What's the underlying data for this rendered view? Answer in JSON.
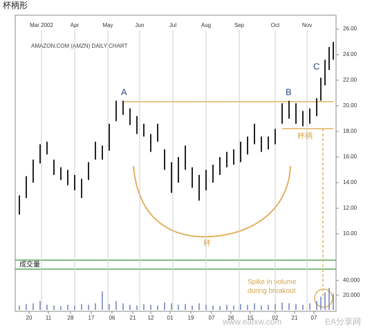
{
  "title": "杯柄形",
  "chart_data": {
    "type": "hilo",
    "subtitle": "AMAZON.COM (AMZN) DAILY CHART",
    "color": "#222222",
    "volume_color": "#6a7fb8",
    "x": [
      3,
      8,
      13,
      18,
      23,
      28,
      33,
      38,
      43,
      48,
      53,
      58,
      63,
      68,
      73,
      78,
      83,
      88,
      93,
      98,
      103,
      108,
      113,
      118,
      123,
      128,
      133,
      138,
      143,
      148,
      153,
      158,
      163,
      168,
      173,
      178,
      183,
      188,
      193,
      198,
      203,
      208,
      213,
      218,
      221,
      224,
      227,
      230
    ],
    "low": [
      11.5,
      12.8,
      14.0,
      15.5,
      16.2,
      14.6,
      14.2,
      13.8,
      13.4,
      12.8,
      14.2,
      15.8,
      15.8,
      16.5,
      18.8,
      19.3,
      18.5,
      17.8,
      17.6,
      16.4,
      17.2,
      15.0,
      13.2,
      14.0,
      15.0,
      13.6,
      12.6,
      13.4,
      14.0,
      14.6,
      15.2,
      15.4,
      15.6,
      16.2,
      17.0,
      16.4,
      16.6,
      17.0,
      18.6,
      19.0,
      18.6,
      18.4,
      18.6,
      19.2,
      20.4,
      21.6,
      22.8,
      23.6
    ],
    "high": [
      13.0,
      14.5,
      15.8,
      17.0,
      17.2,
      15.8,
      15.2,
      15.0,
      14.6,
      14.3,
      15.6,
      17.2,
      16.9,
      18.6,
      20.4,
      20.4,
      19.8,
      19.2,
      18.6,
      17.8,
      18.6,
      16.6,
      15.6,
      16.0,
      16.9,
      15.2,
      14.6,
      15.0,
      15.4,
      16.0,
      16.4,
      16.6,
      17.2,
      17.6,
      18.6,
      17.6,
      17.6,
      18.2,
      20.2,
      20.4,
      20.2,
      19.6,
      19.8,
      20.6,
      22.2,
      23.6,
      24.6,
      25.0
    ],
    "volume": [
      6000,
      8000,
      9000,
      12000,
      7000,
      6000,
      5000,
      7000,
      6000,
      8000,
      7000,
      9000,
      25000,
      8000,
      12000,
      9000,
      7000,
      6000,
      8000,
      7000,
      6000,
      10000,
      9000,
      7000,
      8000,
      6000,
      9000,
      7000,
      6000,
      5000,
      7000,
      6000,
      8000,
      7000,
      9000,
      6000,
      7000,
      8000,
      10000,
      9000,
      8000,
      7000,
      9000,
      12000,
      18000,
      24000,
      30000,
      22000
    ],
    "xlim": [
      0,
      232
    ],
    "ylim": [
      8,
      27
    ],
    "yticks": [
      {
        "value": 10,
        "label": "10.00"
      },
      {
        "value": 12,
        "label": "12.00"
      },
      {
        "value": 14,
        "label": "14.00"
      },
      {
        "value": 16,
        "label": "16.00"
      },
      {
        "value": 18,
        "label": "18.00"
      },
      {
        "value": 20,
        "label": "20.00"
      },
      {
        "value": 22,
        "label": "22.00"
      },
      {
        "value": 24,
        "label": "24.00"
      },
      {
        "value": 26,
        "label": "26.00"
      }
    ],
    "vlim": [
      0,
      45000
    ],
    "vticks": [
      {
        "value": 20000,
        "label": "20,000"
      },
      {
        "value": 40000,
        "label": "40,000"
      }
    ],
    "xticks": [
      {
        "value": 10,
        "label": "20"
      },
      {
        "value": 24,
        "label": "11"
      },
      {
        "value": 40,
        "label": "28"
      },
      {
        "value": 55,
        "label": "17"
      },
      {
        "value": 70,
        "label": "06"
      },
      {
        "value": 85,
        "label": "21"
      },
      {
        "value": 98,
        "label": "12"
      },
      {
        "value": 112,
        "label": "01"
      },
      {
        "value": 127,
        "label": "19"
      },
      {
        "value": 142,
        "label": "07"
      },
      {
        "value": 156,
        "label": "26"
      },
      {
        "value": 170,
        "label": "15"
      },
      {
        "value": 188,
        "label": "02"
      },
      {
        "value": 202,
        "label": "21"
      },
      {
        "value": 216,
        "label": "07"
      }
    ],
    "month_ticks": [
      {
        "value": 19,
        "label": "Mar 2002"
      },
      {
        "value": 43,
        "label": "Apr"
      },
      {
        "value": 67,
        "label": "May"
      },
      {
        "value": 90,
        "label": "Jun"
      },
      {
        "value": 114,
        "label": "Jul"
      },
      {
        "value": 138,
        "label": "Aug"
      },
      {
        "value": 162,
        "label": "Sep"
      },
      {
        "value": 188,
        "label": "Oct"
      },
      {
        "value": 211,
        "label": "Nov"
      }
    ],
    "annotations": [
      "A",
      "B",
      "C",
      "杯",
      "杯柄",
      "成交量",
      "Spike in volume",
      "during breakout"
    ],
    "watermark": [
      "www.eafxw.com",
      "EA分享网"
    ]
  }
}
